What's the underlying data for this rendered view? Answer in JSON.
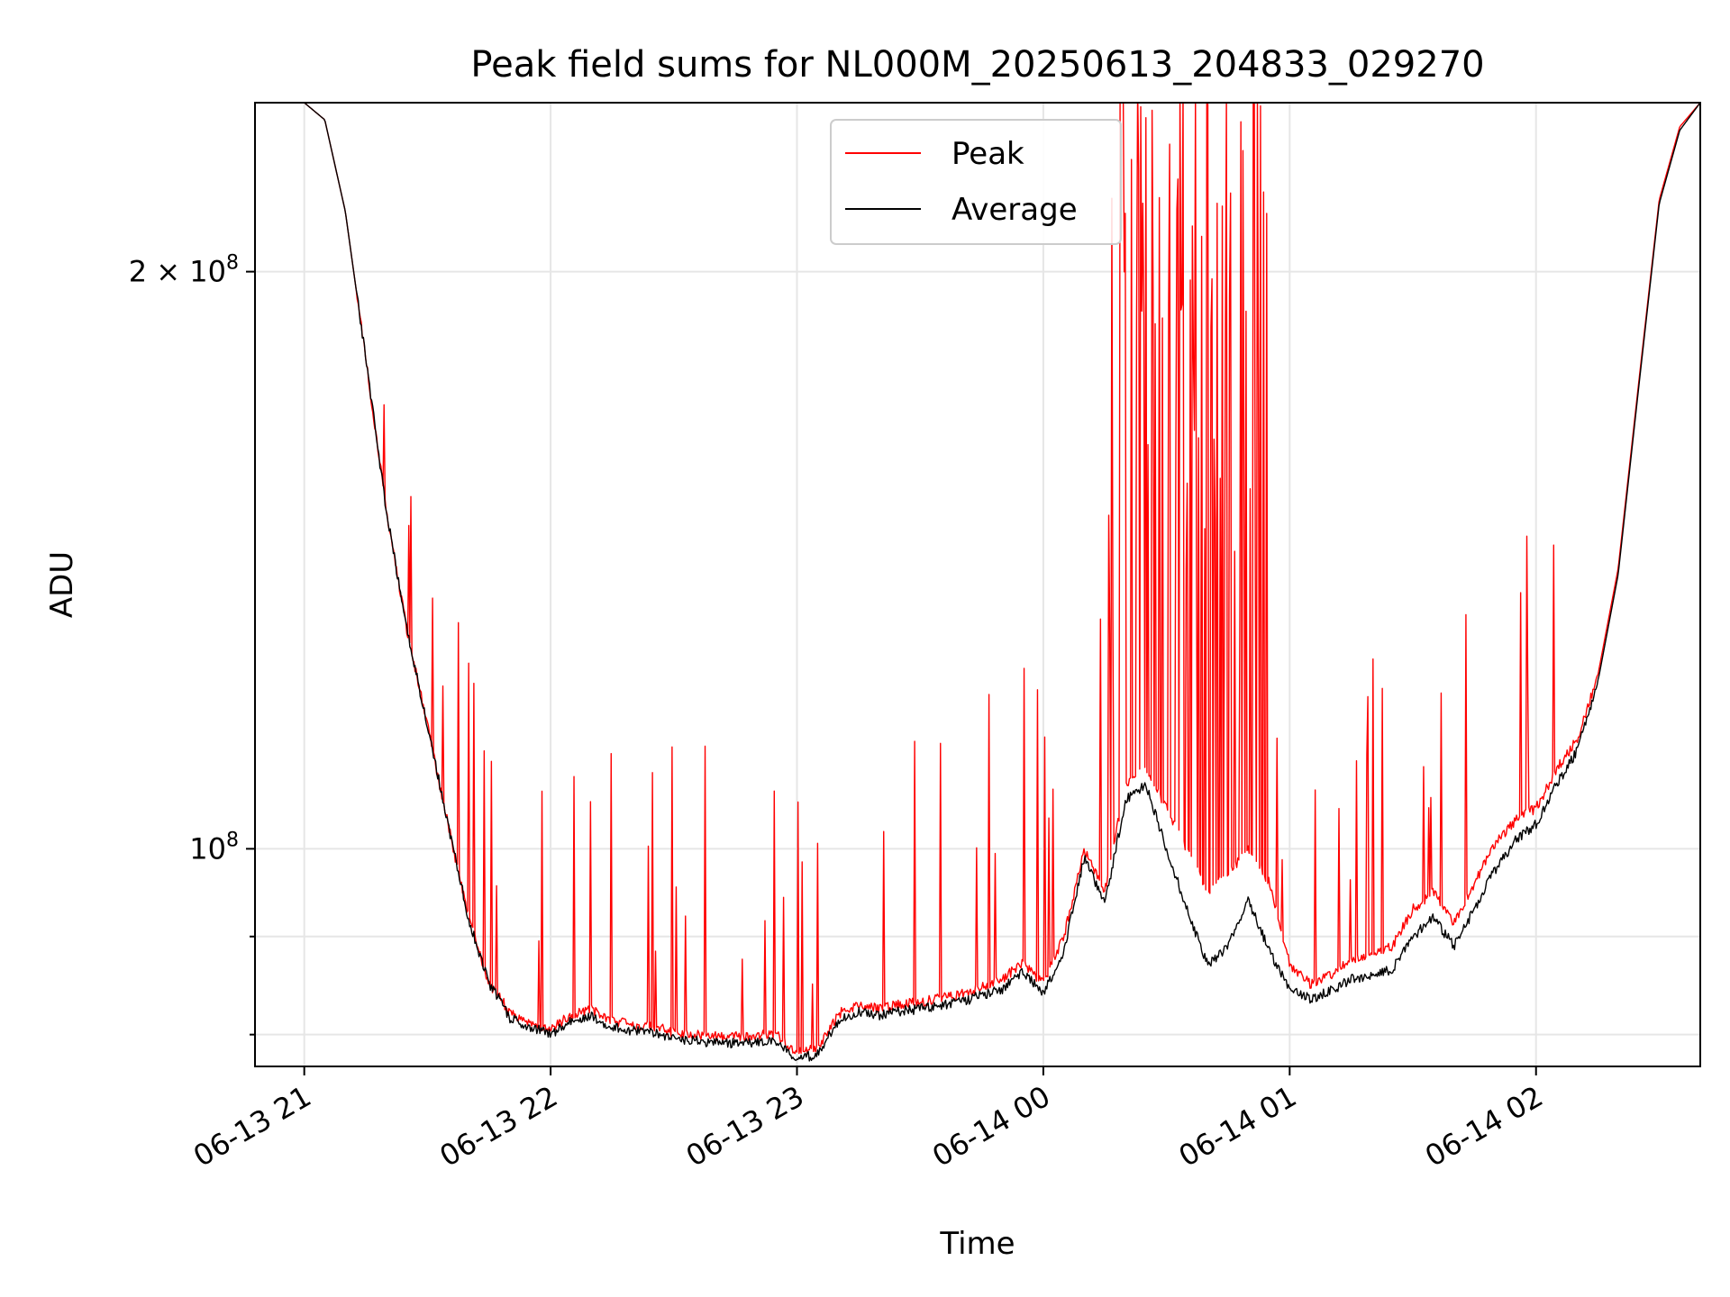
{
  "chart_data": {
    "type": "line",
    "title": "Peak field sums for NL000M_20250613_204833_029270",
    "xlabel": "Time",
    "ylabel": "ADU",
    "y_scale": "log",
    "xlim": [
      "2025-06-13 20:48",
      "2025-06-14 02:40"
    ],
    "ylim": [
      77000000,
      245000000
    ],
    "grid": true,
    "legend_position": "top-center",
    "x_ticks": [
      {
        "time": "2025-06-13 21:00",
        "label": "06-13 21"
      },
      {
        "time": "2025-06-13 22:00",
        "label": "06-13 22"
      },
      {
        "time": "2025-06-13 23:00",
        "label": "06-13 23"
      },
      {
        "time": "2025-06-14 00:00",
        "label": "06-14 00"
      },
      {
        "time": "2025-06-14 01:00",
        "label": "06-14 01"
      },
      {
        "time": "2025-06-14 02:00",
        "label": "06-14 02"
      }
    ],
    "y_major_ticks": [
      {
        "value": 100000000,
        "label": "10",
        "exponent": "8",
        "mantissa": ""
      },
      {
        "value": 200000000,
        "label": "2 × 10",
        "exponent": "8",
        "mantissa": "2"
      }
    ],
    "y_minor_ticks": [
      80000000,
      90000000
    ],
    "series": [
      {
        "name": "Peak",
        "color": "#ff0000",
        "x": [
          "2025-06-13 20:48",
          "2025-06-13 21:00",
          "2025-06-13 21:05",
          "2025-06-13 21:10",
          "2025-06-13 21:15",
          "2025-06-13 21:20",
          "2025-06-13 21:25",
          "2025-06-13 21:30",
          "2025-06-13 21:35",
          "2025-06-13 21:40",
          "2025-06-13 21:45",
          "2025-06-13 21:48",
          "2025-06-13 21:50",
          "2025-06-13 21:55",
          "2025-06-13 22:00",
          "2025-06-13 22:05",
          "2025-06-13 22:10",
          "2025-06-13 22:15",
          "2025-06-13 22:20",
          "2025-06-13 22:25",
          "2025-06-13 22:30",
          "2025-06-13 22:40",
          "2025-06-13 22:50",
          "2025-06-13 22:55",
          "2025-06-13 23:00",
          "2025-06-13 23:05",
          "2025-06-13 23:10",
          "2025-06-13 23:15",
          "2025-06-13 23:20",
          "2025-06-13 23:25",
          "2025-06-13 23:30",
          "2025-06-13 23:40",
          "2025-06-13 23:50",
          "2025-06-13 23:55",
          "2025-06-14 00:00",
          "2025-06-14 00:05",
          "2025-06-14 00:10",
          "2025-06-14 00:15",
          "2025-06-14 00:20",
          "2025-06-14 00:25",
          "2025-06-14 00:30",
          "2025-06-14 00:35",
          "2025-06-14 00:40",
          "2025-06-14 00:45",
          "2025-06-14 00:50",
          "2025-06-14 00:55",
          "2025-06-14 01:00",
          "2025-06-14 01:05",
          "2025-06-14 01:10",
          "2025-06-14 01:15",
          "2025-06-14 01:20",
          "2025-06-14 01:25",
          "2025-06-14 01:30",
          "2025-06-14 01:35",
          "2025-06-14 01:40",
          "2025-06-14 01:45",
          "2025-06-14 01:50",
          "2025-06-14 01:55",
          "2025-06-14 02:00",
          "2025-06-14 02:05",
          "2025-06-14 02:10",
          "2025-06-14 02:15",
          "2025-06-14 02:20",
          "2025-06-14 02:25",
          "2025-06-14 02:30",
          "2025-06-14 02:35",
          "2025-06-14 02:40"
        ],
        "y": [
          245000000,
          245000000,
          240000000,
          215000000,
          180000000,
          150000000,
          130000000,
          116000000,
          103000000,
          92000000,
          85000000,
          83500000,
          82000000,
          81200000,
          80500000,
          82000000,
          82500000,
          81300000,
          81000000,
          80800000,
          80200000,
          79800000,
          79900000,
          80000000,
          78200000,
          78700000,
          82000000,
          83000000,
          82500000,
          83000000,
          83200000,
          84000000,
          85500000,
          87300000,
          85000000,
          90000000,
          100000000,
          95000000,
          108000000,
          110000000,
          105000000,
          100000000,
          95000000,
          97000000,
          100000000,
          96000000,
          87000000,
          85000000,
          86000000,
          87500000,
          88000000,
          89000000,
          93000000,
          95000000,
          91500000,
          96000000,
          100500000,
          103500000,
          105000000,
          110000000,
          114000000,
          123000000,
          140000000,
          175000000,
          218000000,
          238000000,
          245000000
        ]
      },
      {
        "name": "Average",
        "color": "#000000",
        "x": [
          "2025-06-13 20:48",
          "2025-06-13 21:00",
          "2025-06-13 21:05",
          "2025-06-13 21:10",
          "2025-06-13 21:15",
          "2025-06-13 21:20",
          "2025-06-13 21:25",
          "2025-06-13 21:30",
          "2025-06-13 21:35",
          "2025-06-13 21:40",
          "2025-06-13 21:45",
          "2025-06-13 21:48",
          "2025-06-13 21:50",
          "2025-06-13 21:55",
          "2025-06-13 22:00",
          "2025-06-13 22:05",
          "2025-06-13 22:10",
          "2025-06-13 22:15",
          "2025-06-13 22:20",
          "2025-06-13 22:25",
          "2025-06-13 22:30",
          "2025-06-13 22:40",
          "2025-06-13 22:50",
          "2025-06-13 22:55",
          "2025-06-13 23:00",
          "2025-06-13 23:05",
          "2025-06-13 23:10",
          "2025-06-13 23:15",
          "2025-06-13 23:20",
          "2025-06-13 23:25",
          "2025-06-13 23:30",
          "2025-06-13 23:40",
          "2025-06-13 23:50",
          "2025-06-13 23:55",
          "2025-06-14 00:00",
          "2025-06-14 00:05",
          "2025-06-14 00:10",
          "2025-06-14 00:15",
          "2025-06-14 00:20",
          "2025-06-14 00:25",
          "2025-06-14 00:30",
          "2025-06-14 00:35",
          "2025-06-14 00:40",
          "2025-06-14 00:45",
          "2025-06-14 00:50",
          "2025-06-14 00:55",
          "2025-06-14 01:00",
          "2025-06-14 01:05",
          "2025-06-14 01:10",
          "2025-06-14 01:15",
          "2025-06-14 01:20",
          "2025-06-14 01:25",
          "2025-06-14 01:30",
          "2025-06-14 01:35",
          "2025-06-14 01:40",
          "2025-06-14 01:45",
          "2025-06-14 01:50",
          "2025-06-14 01:55",
          "2025-06-14 02:00",
          "2025-06-14 02:05",
          "2025-06-14 02:10",
          "2025-06-14 02:15",
          "2025-06-14 02:20",
          "2025-06-14 02:25",
          "2025-06-14 02:30",
          "2025-06-14 02:35",
          "2025-06-14 02:40"
        ],
        "y": [
          245000000,
          245000000,
          240000000,
          215000000,
          180000000,
          150000000,
          130000000,
          116000000,
          103000000,
          92000000,
          85000000,
          83200000,
          81600000,
          80800000,
          80000000,
          81300000,
          81800000,
          80700000,
          80400000,
          80200000,
          79600000,
          79200000,
          79200000,
          79300000,
          77700000,
          78100000,
          81300000,
          82300000,
          81800000,
          82300000,
          82500000,
          83200000,
          84500000,
          86300000,
          84000000,
          88500000,
          99000000,
          93500000,
          106000000,
          108000000,
          100000000,
          93000000,
          87000000,
          89000000,
          94000000,
          88500000,
          84500000,
          83500000,
          84300000,
          85500000,
          86000000,
          86500000,
          90000000,
          92000000,
          89000000,
          93000000,
          97500000,
          101000000,
          103000000,
          108000000,
          112500000,
          122000000,
          139000000,
          174000000,
          217000000,
          237000000,
          245000000
        ]
      }
    ]
  }
}
